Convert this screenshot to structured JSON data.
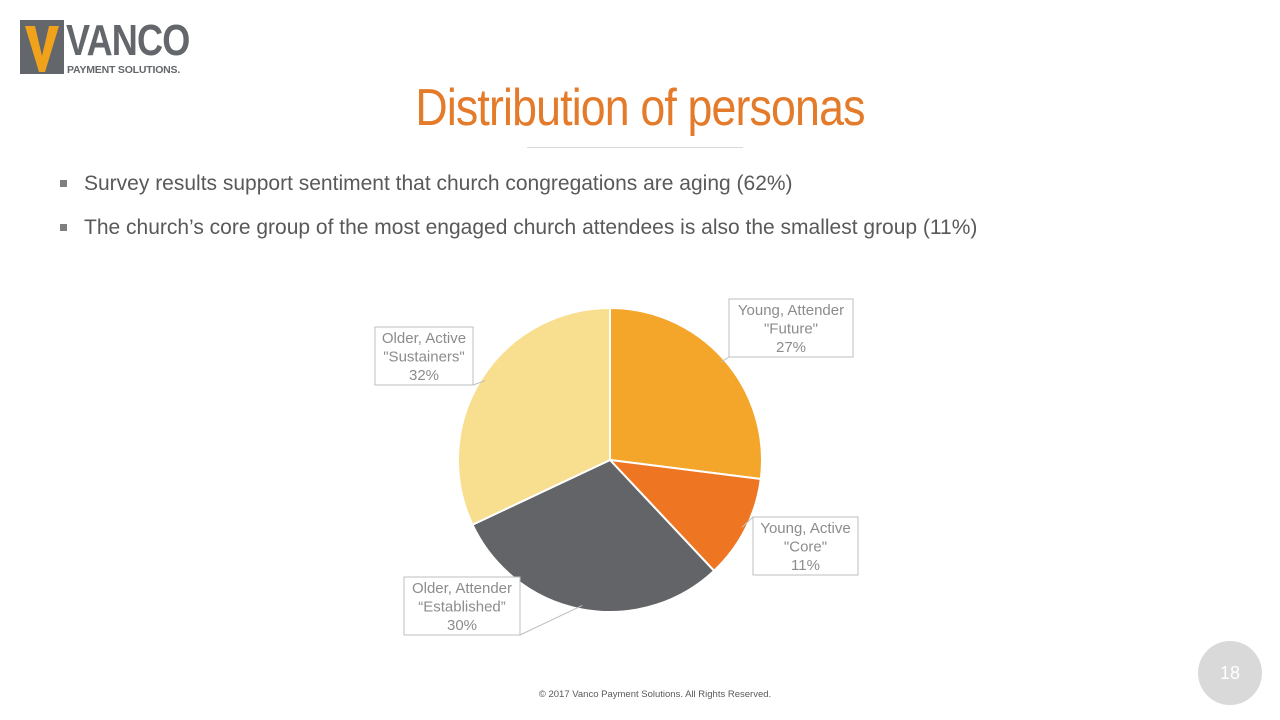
{
  "logo": {
    "word": "VANCO",
    "subtitle": "PAYMENT SOLUTIONS."
  },
  "title": "Distribution of personas",
  "bullets": [
    "Survey results support sentiment that church congregations are aging (62%)",
    "The church’s core group of the most engaged church attendees is also the smallest group (11%)"
  ],
  "chart_data": {
    "type": "pie",
    "slices": [
      {
        "label_line1": "Young, Attender",
        "label_line2": "\"Future\"",
        "value": 27,
        "value_label": "27%",
        "color": "#f4a62a"
      },
      {
        "label_line1": "Young, Active",
        "label_line2": "\"Core\"",
        "value": 11,
        "value_label": "11%",
        "color": "#ee7622"
      },
      {
        "label_line1": "Older, Attender",
        "label_line2": "“Established”",
        "value": 30,
        "value_label": "30%",
        "color": "#636467"
      },
      {
        "label_line1": "Older, Active",
        "label_line2": "\"Sustainers\"",
        "value": 32,
        "value_label": "32%",
        "color": "#f8de8f"
      }
    ],
    "start_angle_deg": 0,
    "direction": "clockwise",
    "label_style": "callout boxes with leader lines"
  },
  "footer": "© 2017 Vanco Payment Solutions. All Rights Reserved.",
  "page_number": "18",
  "colors": {
    "title": "#e47b2a",
    "logo_gray": "#63666a",
    "logo_orange": "#f0a21b",
    "body_text": "#595959"
  }
}
